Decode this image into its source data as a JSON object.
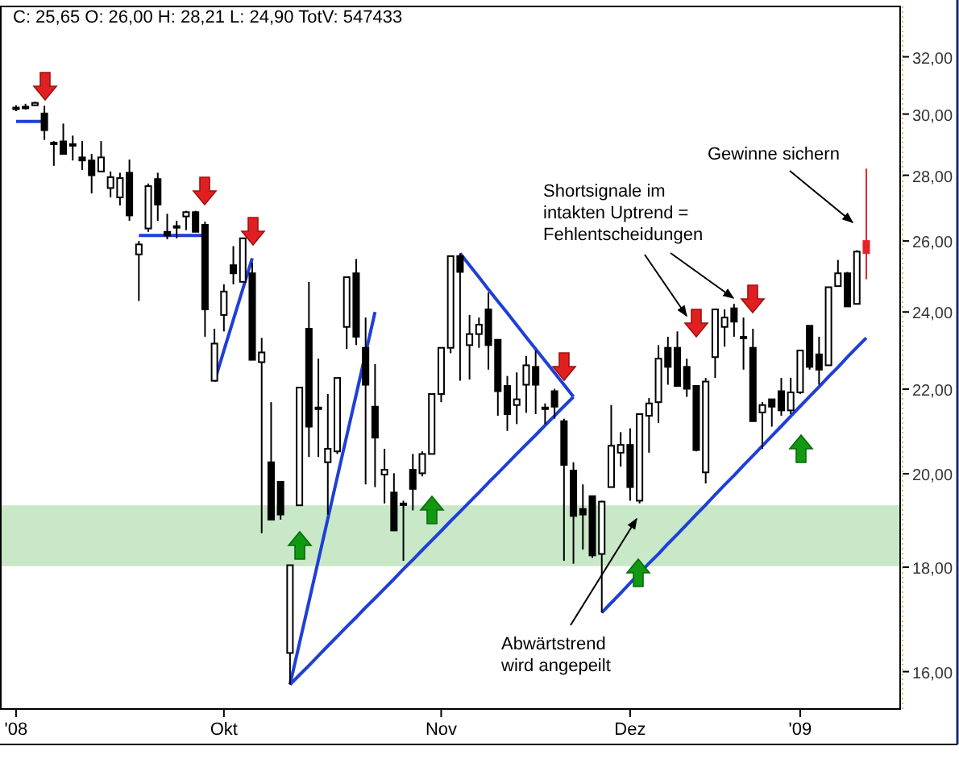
{
  "chart_data": {
    "type": "candlestick",
    "title": "C: 25,65 O: 26,00 H: 28,21 L: 24,90 TotV: 547433",
    "log": "y",
    "categories": [
      "'08",
      null,
      null,
      null,
      null,
      null,
      null,
      null,
      null,
      null,
      null,
      null,
      null,
      null,
      null,
      null,
      null,
      null,
      null,
      null,
      null,
      null,
      "Okt",
      null,
      null,
      null,
      null,
      null,
      null,
      null,
      null,
      null,
      null,
      null,
      null,
      null,
      null,
      null,
      null,
      null,
      null,
      null,
      null,
      null,
      null,
      "Nov",
      null,
      null,
      null,
      null,
      null,
      null,
      null,
      null,
      null,
      null,
      null,
      null,
      null,
      null,
      null,
      null,
      null,
      null,
      null,
      "Dez",
      null,
      null,
      null,
      null,
      null,
      null,
      null,
      null,
      null,
      null,
      null,
      null,
      null,
      null,
      null,
      null,
      null,
      "'09",
      null,
      null,
      null,
      null,
      null,
      null,
      null
    ],
    "ohlc": [
      [
        30.18,
        30.3,
        30.1,
        30.22
      ],
      [
        30.25,
        30.35,
        30.15,
        30.25
      ],
      [
        30.3,
        30.42,
        30.28,
        30.38
      ],
      [
        30.02,
        30.28,
        29.14,
        29.46
      ],
      [
        29.05,
        29.1,
        28.3,
        29.03
      ],
      [
        29.09,
        29.68,
        28.68,
        28.68
      ],
      [
        29.0,
        29.28,
        28.47,
        28.98
      ],
      [
        28.57,
        29.1,
        28.17,
        28.47
      ],
      [
        28.47,
        28.68,
        27.43,
        28.0
      ],
      [
        28.12,
        29.1,
        28.12,
        28.57
      ],
      [
        27.6,
        28.12,
        27.31,
        27.94
      ],
      [
        27.31,
        28.08,
        27.06,
        27.91
      ],
      [
        28.08,
        28.5,
        26.6,
        26.76
      ],
      [
        25.61,
        26.0,
        24.3,
        25.9
      ],
      [
        26.37,
        27.74,
        26.27,
        27.66
      ],
      [
        27.88,
        28.08,
        26.6,
        27.09
      ],
      [
        26.27,
        26.81,
        26.05,
        26.16
      ],
      [
        26.44,
        26.6,
        26.08,
        26.42
      ],
      [
        26.73,
        26.9,
        26.32,
        26.86
      ],
      [
        26.86,
        26.9,
        26.27,
        26.27
      ],
      [
        26.48,
        26.57,
        23.34,
        24.07
      ],
      [
        22.21,
        23.55,
        22.21,
        23.16
      ],
      [
        23.92,
        24.76,
        23.48,
        24.56
      ],
      [
        25.3,
        25.85,
        24.76,
        25.07
      ],
      [
        24.83,
        26.08,
        24.83,
        26.08
      ],
      [
        25.07,
        25.38,
        22.74,
        22.74
      ],
      [
        22.68,
        23.31,
        18.7,
        22.93
      ],
      [
        20.26,
        21.68,
        18.99,
        18.99
      ],
      [
        19.82,
        19.82,
        18.99,
        19.1
      ],
      [
        16.34,
        18.04,
        15.77,
        18.04
      ],
      [
        19.3,
        22.04,
        19.3,
        22.04
      ],
      [
        23.55,
        24.83,
        20.38,
        21.09
      ],
      [
        21.55,
        22.77,
        20.38,
        21.55
      ],
      [
        20.26,
        21.88,
        19.1,
        20.57
      ],
      [
        20.51,
        22.28,
        20.45,
        22.28
      ],
      [
        23.6,
        24.96,
        23.02,
        24.96
      ],
      [
        25.07,
        25.48,
        23.12,
        23.34
      ],
      [
        23.05,
        23.85,
        19.76,
        22.11
      ],
      [
        21.57,
        22.63,
        19.7,
        20.83
      ],
      [
        19.98,
        20.57,
        19.34,
        20.09
      ],
      [
        19.58,
        20.01,
        18.76,
        18.76
      ],
      [
        19.34,
        19.4,
        18.13,
        19.34
      ],
      [
        20.09,
        20.45,
        19.19,
        19.66
      ],
      [
        20.01,
        20.51,
        19.94,
        20.45
      ],
      [
        20.45,
        21.88,
        20.45,
        21.88
      ],
      [
        21.88,
        23.05,
        21.68,
        23.05
      ],
      [
        23.05,
        25.56,
        22.91,
        25.56
      ],
      [
        25.56,
        25.64,
        22.21,
        25.11
      ],
      [
        23.12,
        23.92,
        22.24,
        23.41
      ],
      [
        23.41,
        23.85,
        23.05,
        23.66
      ],
      [
        24.07,
        24.53,
        22.49,
        23.12
      ],
      [
        23.26,
        23.26,
        21.35,
        21.95
      ],
      [
        22.08,
        22.33,
        20.99,
        21.39
      ],
      [
        21.61,
        22.42,
        21.15,
        21.75
      ],
      [
        22.11,
        22.84,
        21.42,
        22.6
      ],
      [
        22.56,
        22.98,
        21.39,
        22.11
      ],
      [
        21.55,
        21.65,
        21.15,
        21.55
      ],
      [
        21.95,
        22.01,
        21.28,
        21.57
      ],
      [
        21.22,
        21.28,
        18.13,
        20.2
      ],
      [
        20.07,
        20.26,
        18.07,
        19.07
      ],
      [
        19.22,
        19.76,
        18.36,
        19.1
      ],
      [
        19.5,
        19.5,
        18.19,
        18.24
      ],
      [
        18.27,
        19.4,
        17.1,
        19.38
      ],
      [
        19.7,
        21.61,
        19.7,
        20.64
      ],
      [
        20.48,
        20.96,
        20.16,
        20.66
      ],
      [
        20.66,
        21.05,
        19.4,
        19.7
      ],
      [
        19.4,
        21.39,
        19.34,
        21.39
      ],
      [
        21.35,
        21.78,
        20.48,
        21.65
      ],
      [
        21.68,
        23.12,
        21.18,
        22.77
      ],
      [
        23.05,
        23.34,
        22.11,
        22.56
      ],
      [
        23.05,
        23.48,
        22.08,
        22.08
      ],
      [
        22.56,
        22.77,
        21.81,
        22.01
      ],
      [
        22.08,
        22.08,
        20.51,
        20.54
      ],
      [
        20.03,
        22.28,
        19.78,
        22.19
      ],
      [
        22.81,
        24.07,
        22.28,
        24.07
      ],
      [
        23.6,
        24.07,
        23.08,
        23.85
      ],
      [
        24.1,
        24.22,
        23.34,
        23.74
      ],
      [
        23.34,
        23.85,
        22.49,
        23.34
      ],
      [
        23.05,
        23.55,
        21.22,
        21.22
      ],
      [
        21.43,
        21.68,
        20.57,
        21.61
      ],
      [
        21.75,
        21.75,
        21.09,
        21.57
      ],
      [
        21.95,
        22.28,
        21.35,
        21.48
      ],
      [
        21.48,
        22.28,
        21.39,
        21.92
      ],
      [
        21.92,
        22.98,
        21.88,
        22.98
      ],
      [
        23.63,
        23.63,
        22.49,
        22.56
      ],
      [
        22.88,
        23.34,
        22.11,
        22.49
      ],
      [
        22.6,
        24.68,
        22.6,
        24.68
      ],
      [
        24.71,
        25.45,
        24.71,
        25.07
      ],
      [
        25.07,
        25.11,
        24.15,
        24.15
      ],
      [
        24.22,
        25.73,
        24.22,
        25.69
      ],
      [
        26.0,
        28.21,
        24.9,
        25.65
      ]
    ],
    "colors": [
      null,
      null,
      null,
      null,
      null,
      null,
      null,
      null,
      null,
      null,
      null,
      null,
      null,
      null,
      null,
      null,
      null,
      null,
      null,
      null,
      null,
      null,
      null,
      null,
      null,
      null,
      null,
      null,
      null,
      null,
      null,
      null,
      null,
      null,
      null,
      null,
      null,
      null,
      null,
      null,
      null,
      null,
      null,
      null,
      null,
      null,
      null,
      null,
      null,
      null,
      null,
      null,
      null,
      null,
      null,
      null,
      null,
      null,
      null,
      null,
      null,
      null,
      null,
      null,
      null,
      null,
      null,
      null,
      null,
      null,
      null,
      null,
      null,
      null,
      null,
      null,
      null,
      null,
      null,
      null,
      null,
      null,
      null,
      null,
      null,
      null,
      null,
      null,
      null,
      null,
      "#e8202a"
    ],
    "series": [
      {
        "type": "line",
        "color": "#1f3fd6",
        "values": [
          29.75,
          29.75,
          29.75,
          29.75,
          null,
          null,
          null,
          null,
          null,
          null,
          null,
          null,
          null,
          null,
          null,
          null,
          null,
          null,
          null,
          null,
          null,
          null,
          null,
          null,
          null,
          null,
          null,
          null,
          null,
          null,
          null,
          null,
          null,
          null,
          null,
          null,
          null,
          null,
          null,
          null,
          null,
          null,
          null,
          null,
          null,
          null,
          null,
          null,
          null,
          null,
          null,
          null,
          null,
          null,
          null,
          null,
          null,
          null,
          null,
          null,
          null,
          null,
          null,
          null,
          null,
          null,
          null,
          null,
          null,
          null,
          null,
          null,
          null,
          null,
          null,
          null,
          null,
          null,
          null,
          null,
          null,
          null,
          null,
          null,
          null,
          null,
          null,
          null,
          null,
          null,
          null
        ]
      },
      {
        "type": "line",
        "color": "#1f3fd6",
        "values": [
          null,
          null,
          null,
          null,
          null,
          null,
          null,
          null,
          null,
          null,
          null,
          null,
          null,
          26.16,
          26.16,
          26.16,
          26.16,
          26.16,
          26.16,
          26.16,
          26.16,
          null,
          null,
          null,
          null,
          null,
          null,
          null,
          null,
          null,
          null,
          null,
          null,
          null,
          null,
          null,
          null,
          null,
          null,
          null,
          null,
          null,
          null,
          null,
          null,
          null,
          null,
          null,
          null,
          null,
          null,
          null,
          null,
          null,
          null,
          null,
          null,
          null,
          null,
          null,
          null,
          null,
          null,
          null,
          null,
          null,
          null,
          null,
          null,
          null,
          null,
          null,
          null,
          null,
          null,
          null,
          null,
          null,
          null,
          null,
          null,
          null,
          null,
          null,
          null,
          null,
          null,
          null,
          null,
          null,
          null
        ]
      },
      {
        "type": "line",
        "color": "#1f3fd6",
        "values": [
          null,
          null,
          null,
          null,
          null,
          null,
          null,
          null,
          null,
          null,
          null,
          null,
          null,
          null,
          null,
          null,
          null,
          null,
          null,
          null,
          null,
          22.19,
          22.98,
          23.79,
          24.63,
          25.5,
          null,
          null,
          null,
          null,
          null,
          null,
          null,
          null,
          null,
          null,
          null,
          null,
          null,
          null,
          null,
          null,
          null,
          null,
          null,
          null,
          null,
          null,
          null,
          null,
          null,
          null,
          null,
          null,
          null,
          null,
          null,
          null,
          null,
          null,
          null,
          null,
          null,
          null,
          null,
          null,
          null,
          null,
          null,
          null,
          null,
          null,
          null,
          null,
          null,
          null,
          null,
          null,
          null,
          null,
          null,
          null,
          null,
          null,
          null,
          null,
          null,
          null,
          null,
          null,
          null
        ]
      },
      {
        "type": "line",
        "color": "#1f3fd6",
        "values": [
          null,
          null,
          null,
          null,
          null,
          null,
          null,
          null,
          null,
          null,
          null,
          null,
          null,
          null,
          null,
          null,
          null,
          null,
          null,
          null,
          null,
          null,
          null,
          null,
          null,
          null,
          null,
          null,
          null,
          15.77,
          16.52,
          17.31,
          18.14,
          19.01,
          19.92,
          20.87,
          21.86,
          null,
          24.0,
          null,
          null,
          null,
          null,
          null,
          null,
          null,
          null,
          null,
          null,
          null,
          null,
          null,
          null,
          null,
          null,
          null,
          null,
          null,
          null,
          null,
          null,
          null,
          null,
          null,
          null,
          null,
          null,
          null,
          null,
          null,
          null,
          null,
          null,
          null,
          null,
          null,
          null,
          null,
          null,
          null,
          null,
          null,
          null,
          null,
          null,
          null,
          null,
          null,
          null,
          null,
          null
        ]
      },
      {
        "type": "line",
        "color": "#1f3fd6",
        "values": [
          null,
          null,
          null,
          null,
          null,
          null,
          null,
          null,
          null,
          null,
          null,
          null,
          null,
          null,
          null,
          null,
          null,
          null,
          null,
          null,
          null,
          null,
          null,
          null,
          null,
          null,
          null,
          null,
          null,
          15.77,
          15.94,
          16.11,
          16.29,
          16.47,
          16.65,
          16.83,
          17.01,
          17.2,
          17.38,
          17.57,
          17.76,
          17.96,
          18.15,
          18.35,
          18.55,
          18.75,
          18.96,
          19.16,
          19.37,
          19.58,
          19.8,
          20.01,
          20.23,
          20.45,
          20.67,
          20.89,
          21.12,
          21.35,
          21.58,
          21.81,
          null,
          null,
          null,
          null,
          null,
          null,
          null,
          null,
          null,
          null,
          null,
          null,
          null,
          null,
          null,
          null,
          null,
          null,
          null,
          null,
          null,
          null,
          null,
          null,
          null,
          null,
          null,
          null,
          null,
          null,
          null
        ]
      },
      {
        "type": "line",
        "color": "#1f3fd6",
        "values": [
          null,
          null,
          null,
          null,
          null,
          null,
          null,
          null,
          null,
          null,
          null,
          null,
          null,
          null,
          null,
          null,
          null,
          null,
          null,
          null,
          null,
          null,
          null,
          null,
          null,
          null,
          null,
          null,
          null,
          null,
          null,
          null,
          null,
          null,
          null,
          null,
          null,
          null,
          null,
          null,
          null,
          null,
          null,
          null,
          null,
          null,
          null,
          25.64,
          25.3,
          24.96,
          24.62,
          24.29,
          23.97,
          23.65,
          23.33,
          23.02,
          22.71,
          22.41,
          22.11,
          21.81,
          null,
          null,
          null,
          null,
          null,
          null,
          null,
          null,
          null,
          null,
          null,
          null,
          null,
          null,
          null,
          null,
          null,
          null,
          null,
          null,
          null,
          null,
          null,
          null,
          null,
          null,
          null,
          null,
          null,
          null,
          null
        ]
      },
      {
        "type": "line",
        "color": "#1f3fd6",
        "values": [
          null,
          null,
          null,
          null,
          null,
          null,
          null,
          null,
          null,
          null,
          null,
          null,
          null,
          null,
          null,
          null,
          null,
          null,
          null,
          null,
          null,
          null,
          null,
          null,
          null,
          null,
          null,
          null,
          null,
          null,
          null,
          null,
          null,
          null,
          null,
          null,
          null,
          null,
          null,
          null,
          null,
          null,
          null,
          null,
          null,
          null,
          null,
          null,
          null,
          null,
          null,
          null,
          null,
          null,
          null,
          null,
          null,
          null,
          null,
          null,
          null,
          null,
          17.1,
          17.29,
          17.48,
          17.68,
          17.88,
          18.08,
          18.27,
          18.48,
          18.68,
          18.89,
          19.1,
          19.31,
          19.53,
          19.75,
          19.96,
          20.19,
          20.41,
          20.64,
          20.87,
          21.1,
          21.34,
          21.58,
          21.82,
          22.06,
          22.31,
          22.55,
          22.81,
          23.06,
          23.31
        ]
      }
    ],
    "bands": [
      {
        "axis": "y",
        "from": 18.02,
        "to": 19.3,
        "color": "#c8e8c8"
      }
    ],
    "ylim": [
      15.34,
      33.87
    ],
    "yticks": [
      {
        "value": 16,
        "label": "16,00"
      },
      {
        "value": 18,
        "label": "18,00"
      },
      {
        "value": 20,
        "label": "20,00"
      },
      {
        "value": 22,
        "label": "22,00"
      },
      {
        "value": 24,
        "label": "24,00"
      },
      {
        "value": 26,
        "label": "26,00"
      },
      {
        "value": 28,
        "label": "28,00"
      },
      {
        "value": 30,
        "label": "30,00"
      },
      {
        "value": 32,
        "label": "32,00"
      }
    ],
    "annotations": [
      "Shortsignale im\nintakten Uptrend =\nFehlentscheidungen",
      "Gewinne sichern",
      "Abwärtstrend\nwird angepeilt"
    ]
  }
}
